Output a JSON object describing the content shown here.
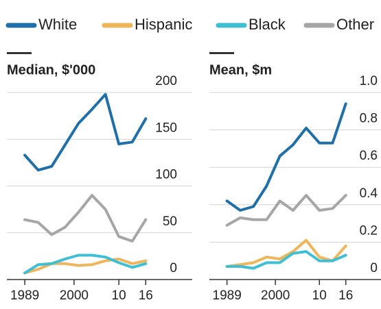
{
  "chart_data": [
    {
      "type": "line",
      "title": "Median, $'000",
      "x": [
        1989,
        1992,
        1995,
        1998,
        2001,
        2004,
        2007,
        2010,
        2013,
        2016
      ],
      "series": [
        {
          "name": "White",
          "color": "#1f6fa8",
          "values": [
            133,
            117,
            121,
            144,
            167,
            182,
            198,
            145,
            147,
            172
          ]
        },
        {
          "name": "Hispanic",
          "color": "#efb55b",
          "values": [
            7,
            11,
            17,
            17,
            15,
            16,
            20,
            22,
            17,
            20
          ]
        },
        {
          "name": "Black",
          "color": "#3fbfd4",
          "values": [
            7,
            16,
            17,
            22,
            26,
            26,
            24,
            18,
            13,
            17
          ]
        },
        {
          "name": "Other",
          "color": "#a6a6a6",
          "values": [
            64,
            61,
            48,
            56,
            72,
            90,
            75,
            46,
            41,
            64
          ]
        }
      ],
      "xlim": [
        1985,
        2025
      ],
      "xticks": [
        1989,
        2000,
        {
          "value": 2010,
          "label": "10"
        },
        {
          "value": 2016,
          "label": "16"
        }
      ],
      "ylim": [
        0,
        200
      ],
      "yticks": [
        0,
        50,
        100,
        150,
        200
      ],
      "grid": true
    },
    {
      "type": "line",
      "title": "Mean, $m",
      "x": [
        1989,
        1992,
        1995,
        1998,
        2001,
        2004,
        2007,
        2010,
        2013,
        2016
      ],
      "series": [
        {
          "values": [
            0.42,
            0.37,
            0.39,
            0.5,
            0.66,
            0.72,
            0.81,
            0.73,
            0.73,
            0.94
          ]
        },
        {
          "values": [
            0.07,
            0.08,
            0.09,
            0.12,
            0.11,
            0.15,
            0.21,
            0.12,
            0.1,
            0.18
          ]
        },
        {
          "values": [
            0.07,
            0.07,
            0.06,
            0.09,
            0.09,
            0.14,
            0.15,
            0.1,
            0.1,
            0.13
          ]
        },
        {
          "values": [
            0.29,
            0.33,
            0.32,
            0.32,
            0.42,
            0.37,
            0.45,
            0.37,
            0.38,
            0.45
          ]
        }
      ],
      "xlim": [
        1985,
        2024
      ],
      "xticks": [
        1989,
        2000,
        {
          "value": 2010,
          "label": "10"
        },
        {
          "value": 2016,
          "label": "16"
        }
      ],
      "ylim": [
        0,
        1
      ],
      "yticks": [
        0,
        {
          "value": 0.2,
          "label": "0.2"
        },
        {
          "value": 0.4,
          "label": "0.4"
        },
        {
          "value": 0.6,
          "label": "0.6"
        },
        {
          "value": 0.8,
          "label": "0.8"
        },
        {
          "value": 1,
          "label": "1.0"
        }
      ],
      "grid": true
    }
  ]
}
